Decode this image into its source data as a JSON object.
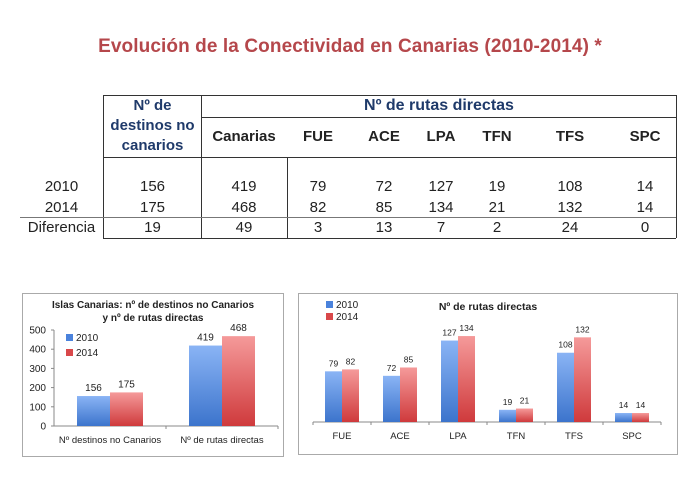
{
  "title": "Evolución de la Conectividad en Canarias (2010-2014) *",
  "table": {
    "group_header_left": [
      "Nº de",
      "destinos  no",
      "canarios"
    ],
    "group_header_right": "Nº de rutas directas",
    "columns": [
      "Canarias",
      "FUE",
      "ACE",
      "LPA",
      "TFN",
      "TFS",
      "SPC"
    ],
    "rows": [
      {
        "label": "2010",
        "destinos": "156",
        "values": [
          "419",
          "79",
          "72",
          "127",
          "19",
          "108",
          "14"
        ]
      },
      {
        "label": "2014",
        "destinos": "175",
        "values": [
          "468",
          "82",
          "85",
          "134",
          "21",
          "132",
          "14"
        ]
      },
      {
        "label": "Diferencia",
        "destinos": "19",
        "values": [
          "49",
          "3",
          "13",
          "7",
          "2",
          "24",
          "0"
        ]
      }
    ]
  },
  "colors": {
    "series_2010": "#5b8fe0",
    "series_2014": "#e0585a",
    "title": "#b5474b",
    "header": "#1f3a6a"
  },
  "chart_data": [
    {
      "type": "bar",
      "title": "Islas Canarias: nº de destinos no Canarios y nº de rutas directas",
      "title_lines": [
        "Islas Canarias: nº de destinos no Canarios",
        "y nº de rutas directas"
      ],
      "categories": [
        "Nº destinos no Canarios",
        "Nº de rutas directas"
      ],
      "series": [
        {
          "name": "2010",
          "values": [
            156,
            419
          ]
        },
        {
          "name": "2014",
          "values": [
            175,
            468
          ]
        }
      ],
      "yticks": [
        0,
        100,
        200,
        300,
        400,
        500
      ],
      "ylim": [
        0,
        500
      ],
      "xlabel": "",
      "ylabel": "",
      "legend": "top-left",
      "grid": false
    },
    {
      "type": "bar",
      "title": "Nº de rutas directas",
      "categories": [
        "FUE",
        "ACE",
        "LPA",
        "TFN",
        "TFS",
        "SPC"
      ],
      "series": [
        {
          "name": "2010",
          "values": [
            79,
            72,
            127,
            19,
            108,
            14
          ]
        },
        {
          "name": "2014",
          "values": [
            82,
            85,
            134,
            21,
            132,
            14
          ]
        }
      ],
      "ylim": [
        0,
        145
      ],
      "xlabel": "",
      "ylabel": "",
      "legend": "top-left",
      "grid": false
    }
  ]
}
